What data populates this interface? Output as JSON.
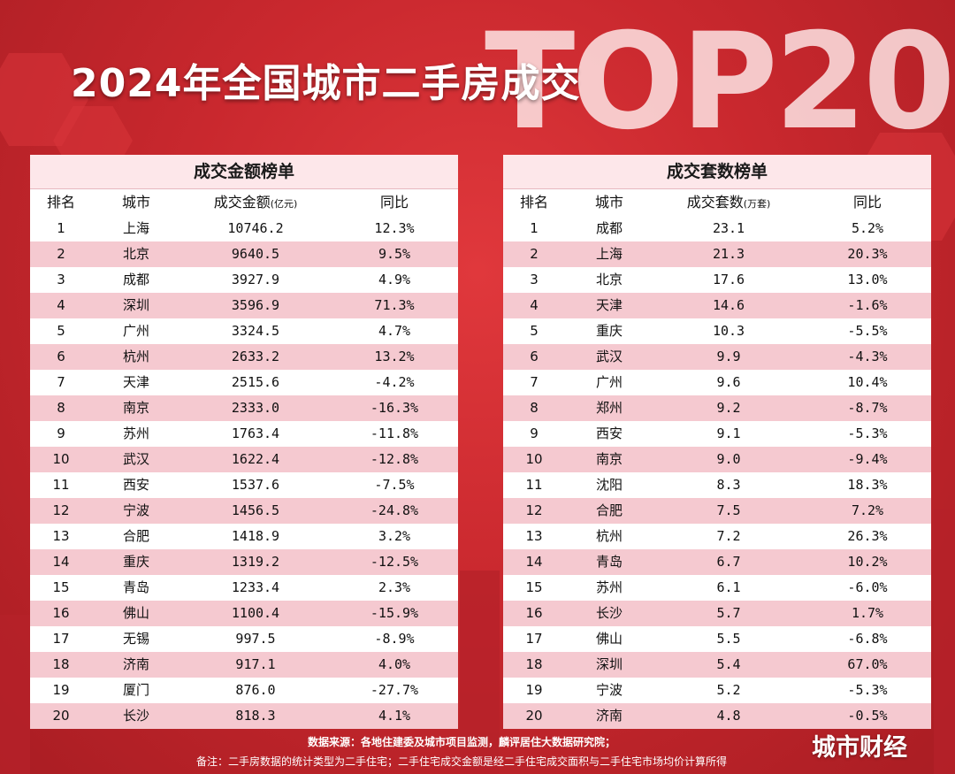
{
  "title": "2024年全国城市二手房成交",
  "watermark": "TOP20",
  "left_table": {
    "title": "成交金额榜单",
    "headers": {
      "rank": "排名",
      "city": "城市",
      "value": "成交金额",
      "unit": "(亿元)",
      "yoy": "同比"
    },
    "rows": [
      {
        "rank": "1",
        "city": "上海",
        "value": "10746.2",
        "yoy": "12.3%"
      },
      {
        "rank": "2",
        "city": "北京",
        "value": "9640.5",
        "yoy": "9.5%"
      },
      {
        "rank": "3",
        "city": "成都",
        "value": "3927.9",
        "yoy": "4.9%"
      },
      {
        "rank": "4",
        "city": "深圳",
        "value": "3596.9",
        "yoy": "71.3%"
      },
      {
        "rank": "5",
        "city": "广州",
        "value": "3324.5",
        "yoy": "4.7%"
      },
      {
        "rank": "6",
        "city": "杭州",
        "value": "2633.2",
        "yoy": "13.2%"
      },
      {
        "rank": "7",
        "city": "天津",
        "value": "2515.6",
        "yoy": "-4.2%"
      },
      {
        "rank": "8",
        "city": "南京",
        "value": "2333.0",
        "yoy": "-16.3%"
      },
      {
        "rank": "9",
        "city": "苏州",
        "value": "1763.4",
        "yoy": "-11.8%"
      },
      {
        "rank": "10",
        "city": "武汉",
        "value": "1622.4",
        "yoy": "-12.8%"
      },
      {
        "rank": "11",
        "city": "西安",
        "value": "1537.6",
        "yoy": "-7.5%"
      },
      {
        "rank": "12",
        "city": "宁波",
        "value": "1456.5",
        "yoy": "-24.8%"
      },
      {
        "rank": "13",
        "city": "合肥",
        "value": "1418.9",
        "yoy": "3.2%"
      },
      {
        "rank": "14",
        "city": "重庆",
        "value": "1319.2",
        "yoy": "-12.5%"
      },
      {
        "rank": "15",
        "city": "青岛",
        "value": "1233.4",
        "yoy": "2.3%"
      },
      {
        "rank": "16",
        "city": "佛山",
        "value": "1100.4",
        "yoy": "-15.9%"
      },
      {
        "rank": "17",
        "city": "无锡",
        "value": "997.5",
        "yoy": "-8.9%"
      },
      {
        "rank": "18",
        "city": "济南",
        "value": "917.1",
        "yoy": "4.0%"
      },
      {
        "rank": "19",
        "city": "厦门",
        "value": "876.0",
        "yoy": "-27.7%"
      },
      {
        "rank": "20",
        "city": "长沙",
        "value": "818.3",
        "yoy": "4.1%"
      }
    ]
  },
  "right_table": {
    "title": "成交套数榜单",
    "headers": {
      "rank": "排名",
      "city": "城市",
      "value": "成交套数",
      "unit": "(万套)",
      "yoy": "同比"
    },
    "rows": [
      {
        "rank": "1",
        "city": "成都",
        "value": "23.1",
        "yoy": "5.2%"
      },
      {
        "rank": "2",
        "city": "上海",
        "value": "21.3",
        "yoy": "20.3%"
      },
      {
        "rank": "3",
        "city": "北京",
        "value": "17.6",
        "yoy": "13.0%"
      },
      {
        "rank": "4",
        "city": "天津",
        "value": "14.6",
        "yoy": "-1.6%"
      },
      {
        "rank": "5",
        "city": "重庆",
        "value": "10.3",
        "yoy": "-5.5%"
      },
      {
        "rank": "6",
        "city": "武汉",
        "value": "9.9",
        "yoy": "-4.3%"
      },
      {
        "rank": "7",
        "city": "广州",
        "value": "9.6",
        "yoy": "10.4%"
      },
      {
        "rank": "8",
        "city": "郑州",
        "value": "9.2",
        "yoy": "-8.7%"
      },
      {
        "rank": "9",
        "city": "西安",
        "value": "9.1",
        "yoy": "-5.3%"
      },
      {
        "rank": "10",
        "city": "南京",
        "value": "9.0",
        "yoy": "-9.4%"
      },
      {
        "rank": "11",
        "city": "沈阳",
        "value": "8.3",
        "yoy": "18.3%"
      },
      {
        "rank": "12",
        "city": "合肥",
        "value": "7.5",
        "yoy": "7.2%"
      },
      {
        "rank": "13",
        "city": "杭州",
        "value": "7.2",
        "yoy": "26.3%"
      },
      {
        "rank": "14",
        "city": "青岛",
        "value": "6.7",
        "yoy": "10.2%"
      },
      {
        "rank": "15",
        "city": "苏州",
        "value": "6.1",
        "yoy": "-6.0%"
      },
      {
        "rank": "16",
        "city": "长沙",
        "value": "5.7",
        "yoy": "1.7%"
      },
      {
        "rank": "17",
        "city": "佛山",
        "value": "5.5",
        "yoy": "-6.8%"
      },
      {
        "rank": "18",
        "city": "深圳",
        "value": "5.4",
        "yoy": "67.0%"
      },
      {
        "rank": "19",
        "city": "宁波",
        "value": "5.2",
        "yoy": "-5.3%"
      },
      {
        "rank": "20",
        "city": "济南",
        "value": "4.8",
        "yoy": "-0.5%"
      }
    ]
  },
  "footer": {
    "source": "数据来源：各地住建委及城市项目监测，麟评居住大数据研究院；",
    "note": "备注：二手房数据的统计类型为二手住宅；二手住宅成交金额是经二手住宅成交面积与二手住宅市场均价计算所得"
  },
  "brand": "城市财经",
  "colors": {
    "background": "#c9282e",
    "row_alt": "#f5c9d0",
    "header_band": "#fde7ea"
  }
}
